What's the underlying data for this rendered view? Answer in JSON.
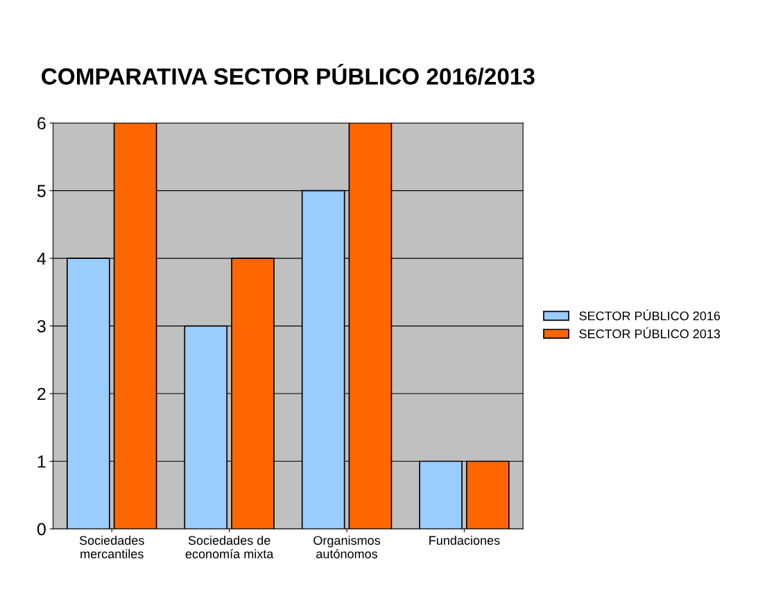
{
  "chart_data": {
    "type": "bar",
    "title": "COMPARATIVA SECTOR PÚBLICO 2016/2013",
    "categories": [
      "Sociedades\nmercantiles",
      "Sociedades de\neconomía mixta",
      "Organismos\nautónomos",
      "Fundaciones"
    ],
    "series": [
      {
        "name": "SECTOR PÚBLICO 2016",
        "color": "#99ccff",
        "values": [
          4,
          3,
          5,
          1
        ]
      },
      {
        "name": "SECTOR PÚBLICO 2013",
        "color": "#ff6600",
        "values": [
          6,
          4,
          6,
          1
        ]
      }
    ],
    "ylim": [
      0,
      6
    ],
    "yticks": [
      0,
      1,
      2,
      3,
      4,
      5,
      6
    ],
    "grid": "y",
    "legend": "right"
  }
}
